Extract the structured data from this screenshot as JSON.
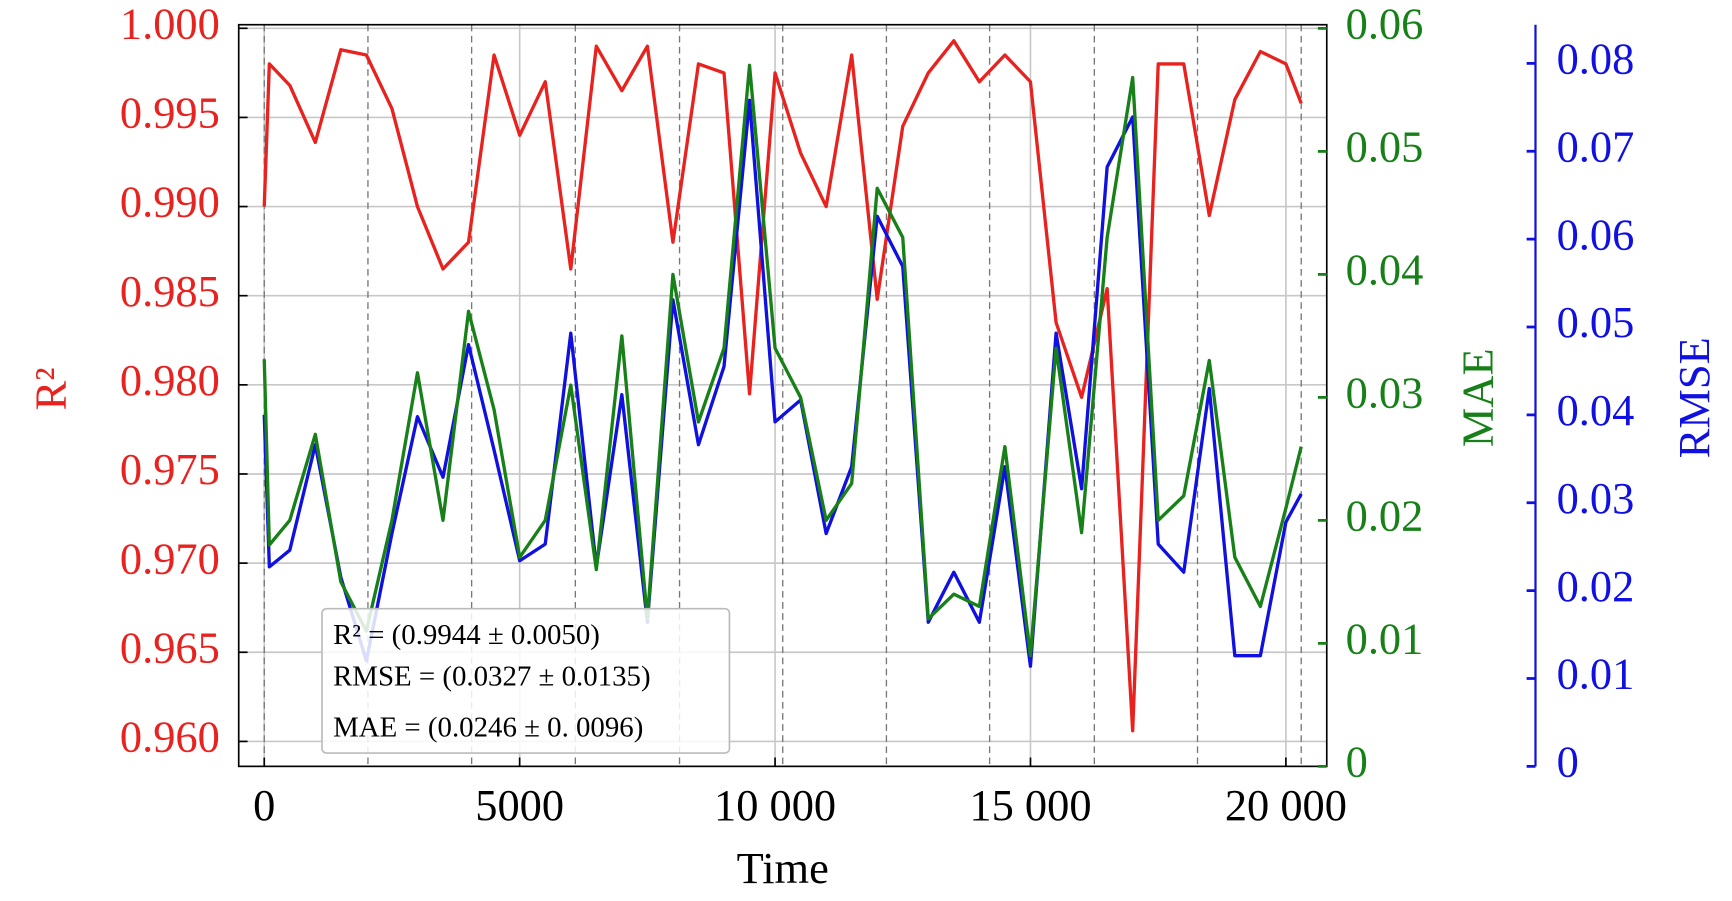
{
  "chart_data": {
    "type": "line",
    "xlabel": "Time",
    "ylabel": "R²",
    "y2label": "MAE",
    "y3label": "RMSE",
    "x": [
      0,
      100,
      500,
      1000,
      1500,
      2000,
      2500,
      3000,
      3500,
      4000,
      4500,
      5000,
      5500,
      6000,
      6500,
      7000,
      7500,
      8000,
      8500,
      9000,
      9500,
      10000,
      10500,
      11000,
      11500,
      12000,
      12500,
      13000,
      13500,
      14000,
      14500,
      15000,
      15500,
      16000,
      16500,
      17000,
      17500,
      18000,
      18500,
      19000,
      19500,
      20000,
      20300
    ],
    "series": [
      {
        "name": "R²",
        "color": "#e8221f",
        "axis": "y",
        "values": [
          0.99,
          0.998,
          0.9968,
          0.9936,
          0.9988,
          0.9985,
          0.9955,
          0.99,
          0.9865,
          0.988,
          0.9985,
          0.994,
          0.997,
          0.9865,
          0.999,
          0.9965,
          0.999,
          0.988,
          0.998,
          0.9975,
          0.9795,
          0.9975,
          0.993,
          0.99,
          0.9985,
          0.9848,
          0.9945,
          0.9975,
          0.9993,
          0.997,
          0.9985,
          0.997,
          0.9835,
          0.9793,
          0.9854,
          0.9606,
          0.998,
          0.998,
          0.9895,
          0.996,
          0.9987,
          0.998,
          0.9958
        ]
      },
      {
        "name": "RMSE",
        "color": "#1010e0",
        "axis": "y3",
        "values": [
          0.04,
          0.0227,
          0.0246,
          0.0366,
          0.0215,
          0.012,
          0.0265,
          0.0398,
          0.0329,
          0.048,
          0.036,
          0.0234,
          0.0253,
          0.0493,
          0.0227,
          0.0423,
          0.0164,
          0.0531,
          0.0366,
          0.0455,
          0.0758,
          0.0392,
          0.0417,
          0.0265,
          0.0341,
          0.0626,
          0.0569,
          0.0164,
          0.0221,
          0.0164,
          0.0341,
          0.0114,
          0.0493,
          0.0316,
          0.0682,
          0.0739,
          0.0253,
          0.0221,
          0.043,
          0.0126,
          0.0126,
          0.0278,
          0.031
        ]
      },
      {
        "name": "MAE",
        "color": "#188018",
        "axis": "y2",
        "values": [
          0.0331,
          0.018,
          0.02,
          0.027,
          0.015,
          0.011,
          0.02,
          0.032,
          0.02,
          0.037,
          0.029,
          0.017,
          0.02,
          0.031,
          0.016,
          0.035,
          0.012,
          0.04,
          0.028,
          0.034,
          0.057,
          0.034,
          0.03,
          0.02,
          0.023,
          0.047,
          0.043,
          0.012,
          0.014,
          0.013,
          0.026,
          0.009,
          0.034,
          0.019,
          0.043,
          0.056,
          0.02,
          0.022,
          0.033,
          0.017,
          0.013,
          0.021,
          0.026
        ]
      }
    ],
    "xlim": [
      -500,
      20800
    ],
    "xticks": [
      0,
      5000,
      {
        "value": 10000,
        "label": "10 000"
      },
      {
        "value": 15000,
        "label": "15 000"
      },
      {
        "value": 20000,
        "label": "20 000"
      }
    ],
    "ylim": [
      0.9586,
      1.0002
    ],
    "yticks": [
      {
        "value": 0.96,
        "label": "0.960"
      },
      0.965,
      {
        "value": 0.97,
        "label": "0.970"
      },
      0.975,
      {
        "value": 0.98,
        "label": "0.980"
      },
      0.985,
      {
        "value": 0.99,
        "label": "0.990"
      },
      0.995,
      {
        "value": 1,
        "label": "1.000"
      }
    ],
    "y2lim": [
      0,
      0.0603
    ],
    "y2ticks": [
      0,
      0.01,
      0.02,
      0.03,
      0.04,
      0.05,
      0.06
    ],
    "y3lim": [
      0,
      0.0844
    ],
    "y3ticks": [
      0,
      0.01,
      0.02,
      0.03,
      0.04,
      0.05,
      0.06,
      0.07,
      0.08
    ],
    "segment_boundaries": [
      0,
      2030,
      4060,
      6090,
      8130,
      10150,
      12180,
      14200,
      16250,
      18270,
      20300
    ],
    "annotations": [
      "R² = (0.9944 ± 0.0050)",
      "RMSE = (0.0327 ± 0.0135)",
      "MAE = (0.0246 ± 0. 0096)"
    ],
    "grid": true
  }
}
